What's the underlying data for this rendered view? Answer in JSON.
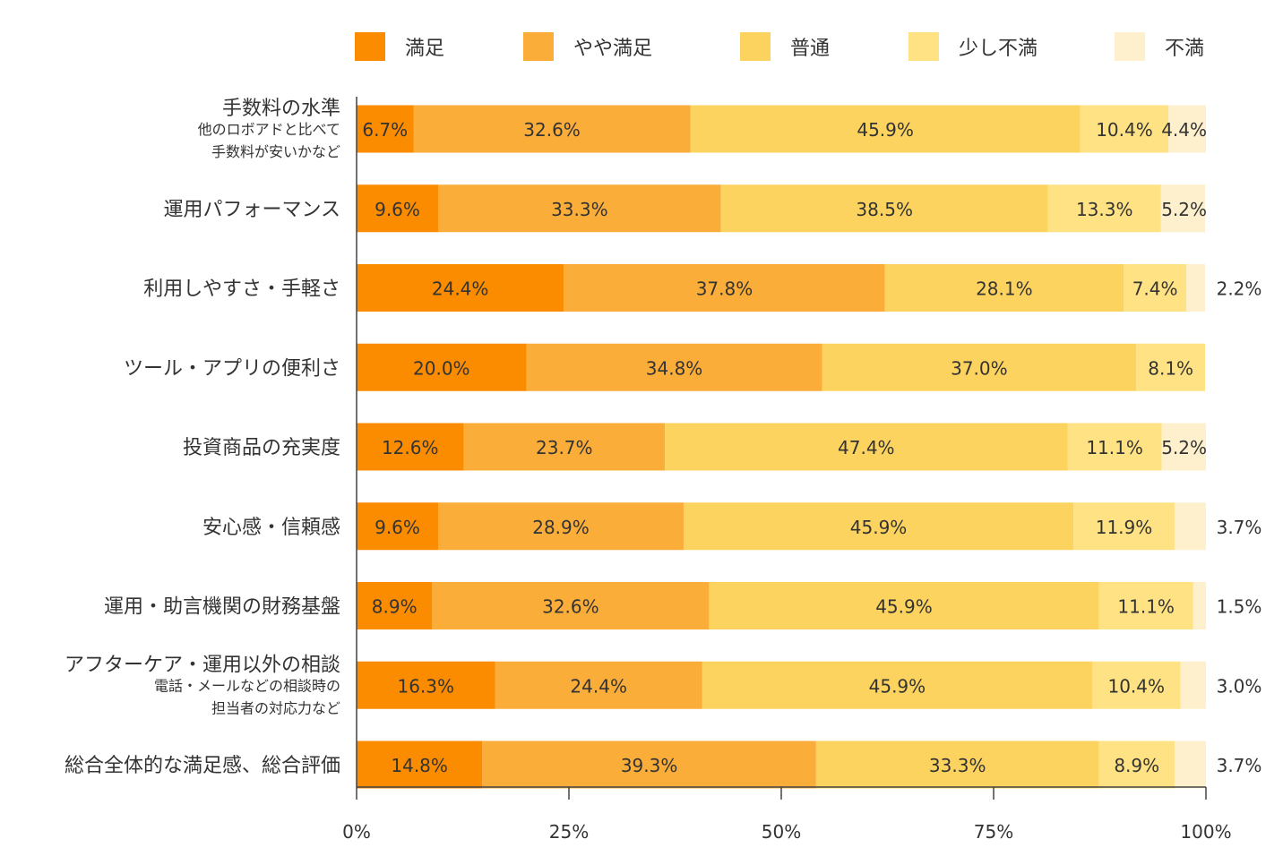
{
  "chart_data": {
    "type": "bar",
    "orientation": "horizontal",
    "stacked": true,
    "categories": [
      {
        "label": "手数料の水準",
        "sub": [
          "他のロボアドと比べて",
          "手数料が安いかなど"
        ]
      },
      {
        "label": "運用パフォーマンス",
        "sub": []
      },
      {
        "label": "利用しやすさ・手軽さ",
        "sub": []
      },
      {
        "label": "ツール・アプリの便利さ",
        "sub": []
      },
      {
        "label": "投資商品の充実度",
        "sub": []
      },
      {
        "label": "安心感・信頼感",
        "sub": []
      },
      {
        "label": "運用・助言機関の財務基盤",
        "sub": []
      },
      {
        "label": "アフターケア・運用以外の相談",
        "sub": [
          "電話・メールなどの相談時の",
          "担当者の対応力など"
        ]
      },
      {
        "label": "総合全体的な満足感、総合評価",
        "sub": []
      }
    ],
    "series": [
      {
        "name": "満足",
        "color": "#FB8C00",
        "values": [
          6.7,
          9.6,
          24.4,
          20.0,
          12.6,
          9.6,
          8.9,
          16.3,
          14.8
        ]
      },
      {
        "name": "やや満足",
        "color": "#FBAD3A",
        "values": [
          32.6,
          33.3,
          37.8,
          34.8,
          23.7,
          28.9,
          32.6,
          24.4,
          39.3
        ]
      },
      {
        "name": "普通",
        "color": "#FDD35F",
        "values": [
          45.9,
          38.5,
          28.1,
          37.0,
          47.4,
          45.9,
          45.9,
          45.9,
          33.3
        ]
      },
      {
        "name": "少し不満",
        "color": "#FEE283",
        "values": [
          10.4,
          13.3,
          7.4,
          8.1,
          11.1,
          11.9,
          11.1,
          10.4,
          8.9
        ]
      },
      {
        "name": "不満",
        "color": "#FEF0CC",
        "values": [
          4.4,
          5.2,
          2.2,
          0,
          5.2,
          3.7,
          1.5,
          3.0,
          3.7
        ]
      }
    ],
    "labels": [
      [
        "6.7%",
        "32.6%",
        "45.9%",
        "10.4%",
        "4.4%"
      ],
      [
        "9.6%",
        "33.3%",
        "38.5%",
        "13.3%",
        "5.2%"
      ],
      [
        "24.4%",
        "37.8%",
        "28.1%",
        "7.4%",
        "2.2%"
      ],
      [
        "20.0%",
        "34.8%",
        "37.0%",
        "8.1%",
        ""
      ],
      [
        "12.6%",
        "23.7%",
        "47.4%",
        "11.1%",
        "5.2%"
      ],
      [
        "9.6%",
        "28.9%",
        "45.9%",
        "11.9%",
        "3.7%"
      ],
      [
        "8.9%",
        "32.6%",
        "45.9%",
        "11.1%",
        "1.5%"
      ],
      [
        "16.3%",
        "24.4%",
        "45.9%",
        "10.4%",
        "3.0%"
      ],
      [
        "14.8%",
        "39.3%",
        "33.3%",
        "8.9%",
        "3.7%"
      ]
    ],
    "outside_labels": [
      false,
      false,
      true,
      false,
      false,
      true,
      true,
      true,
      true
    ],
    "xlim": [
      0,
      100
    ],
    "xticks": [
      {
        "value": 0,
        "label": "0%"
      },
      {
        "value": 25,
        "label": "25%"
      },
      {
        "value": 50,
        "label": "50%"
      },
      {
        "value": 75,
        "label": "75%"
      },
      {
        "value": 100,
        "label": "100%"
      }
    ],
    "legend_position": "top",
    "grid": false
  }
}
